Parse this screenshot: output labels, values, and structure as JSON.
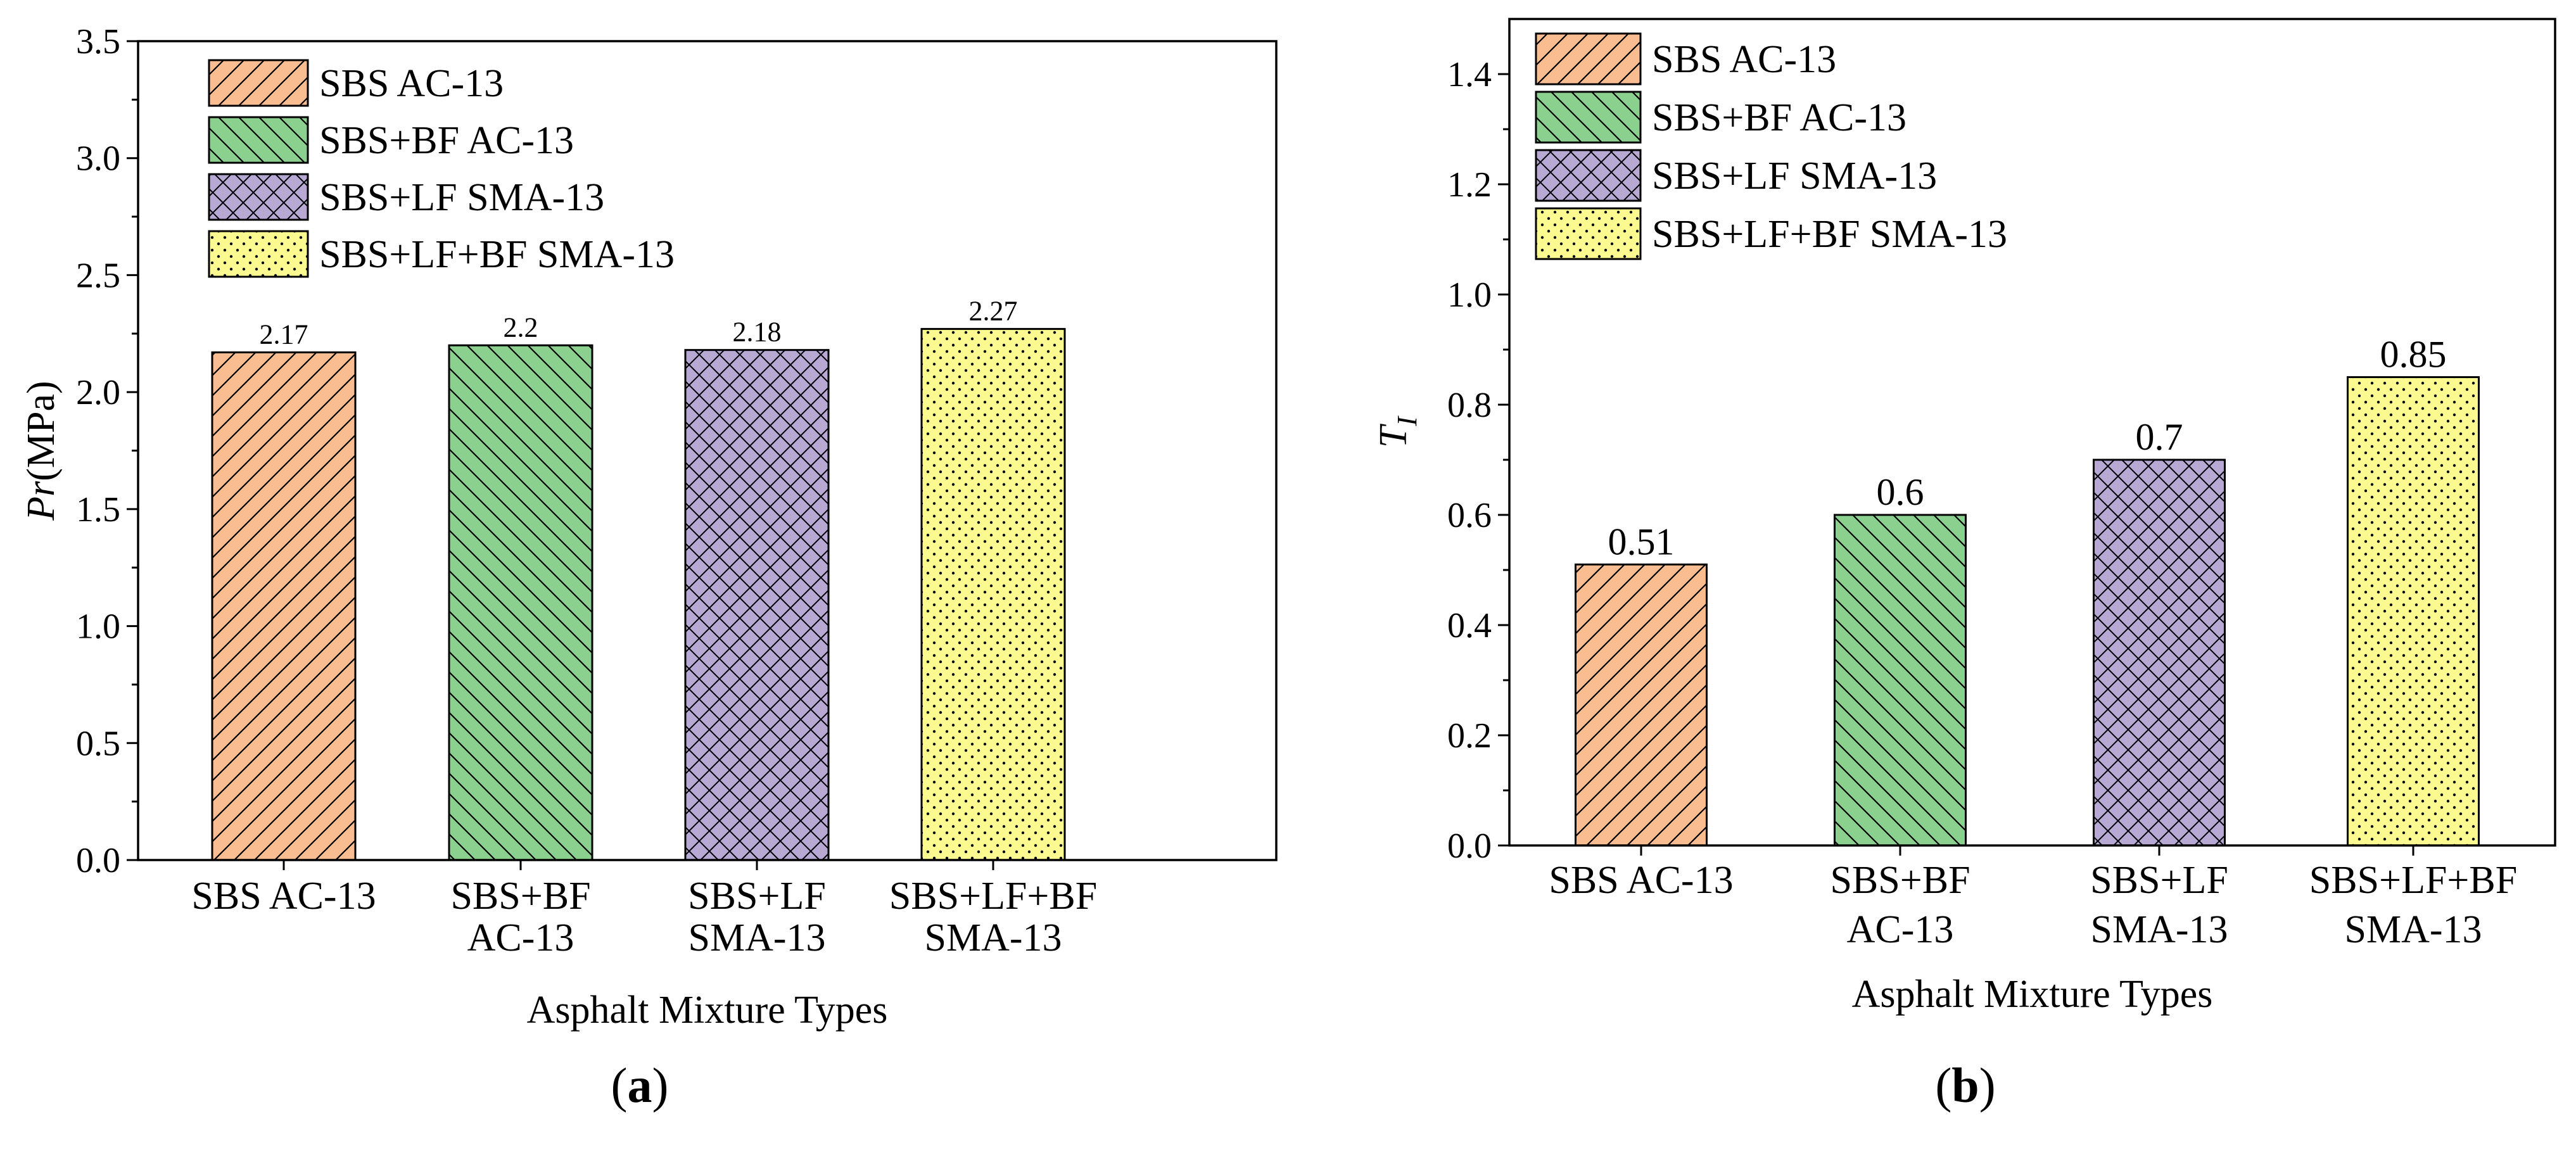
{
  "chart_data": [
    {
      "type": "bar",
      "panel": "(a)",
      "panel_letter": "a",
      "categories": [
        [
          "SBS AC-13"
        ],
        [
          "SBS+BF",
          "AC-13"
        ],
        [
          "SBS+LF",
          "SMA-13"
        ],
        [
          "SBS+LF+BF",
          "SMA-13"
        ]
      ],
      "values": [
        2.17,
        2.2,
        2.18,
        2.27
      ],
      "value_labels": [
        "2.17",
        "2.2",
        "2.18",
        "2.27"
      ],
      "xlabel": "Asphalt Mixture Types",
      "ylabel_italic": "Pr",
      "ylabel_unit": "(MPa)",
      "ylim": [
        0,
        3.5
      ],
      "yticks": [
        "0.0",
        "0.5",
        "1.0",
        "1.5",
        "2.0",
        "2.5",
        "3.0",
        "3.5"
      ],
      "yticks_values": [
        0,
        0.5,
        1.0,
        1.5,
        2.0,
        2.5,
        3.0,
        3.5
      ],
      "legend": [
        "SBS AC-13",
        "SBS+BF AC-13",
        "SBS+LF SMA-13",
        "SBS+LF+BF SMA-13"
      ],
      "legend_position": "top-left"
    },
    {
      "type": "bar",
      "panel": "(b)",
      "panel_letter": "b",
      "categories": [
        [
          "SBS AC-13"
        ],
        [
          "SBS+BF",
          "AC-13"
        ],
        [
          "SBS+LF",
          "SMA-13"
        ],
        [
          "SBS+LF+BF",
          "SMA-13"
        ]
      ],
      "values": [
        0.51,
        0.6,
        0.7,
        0.85
      ],
      "value_labels": [
        "0.51",
        "0.6",
        "0.7",
        "0.85"
      ],
      "xlabel": "Asphalt Mixture Types",
      "ylabel_italic": "T",
      "ylabel_sub": "I",
      "ylim": [
        0,
        1.5
      ],
      "yticks": [
        "0.0",
        "0.2",
        "0.4",
        "0.6",
        "0.8",
        "1.0",
        "1.2",
        "1.4"
      ],
      "yticks_values": [
        0,
        0.2,
        0.4,
        0.6,
        0.8,
        1.0,
        1.2,
        1.4
      ],
      "legend": [
        "SBS AC-13",
        "SBS+BF AC-13",
        "SBS+LF SMA-13",
        "SBS+LF+BF SMA-13"
      ],
      "legend_position": "top-left"
    }
  ],
  "series_styles": [
    {
      "name": "SBS AC-13",
      "color": "#F9BD91",
      "pattern": "diagonal-forward"
    },
    {
      "name": "SBS+BF AC-13",
      "color": "#8CD08F",
      "pattern": "diagonal-back"
    },
    {
      "name": "SBS+LF SMA-13",
      "color": "#B8A8D4",
      "pattern": "crosshatch"
    },
    {
      "name": "SBS+LF+BF SMA-13",
      "color": "#FBFA90",
      "pattern": "dots"
    }
  ]
}
